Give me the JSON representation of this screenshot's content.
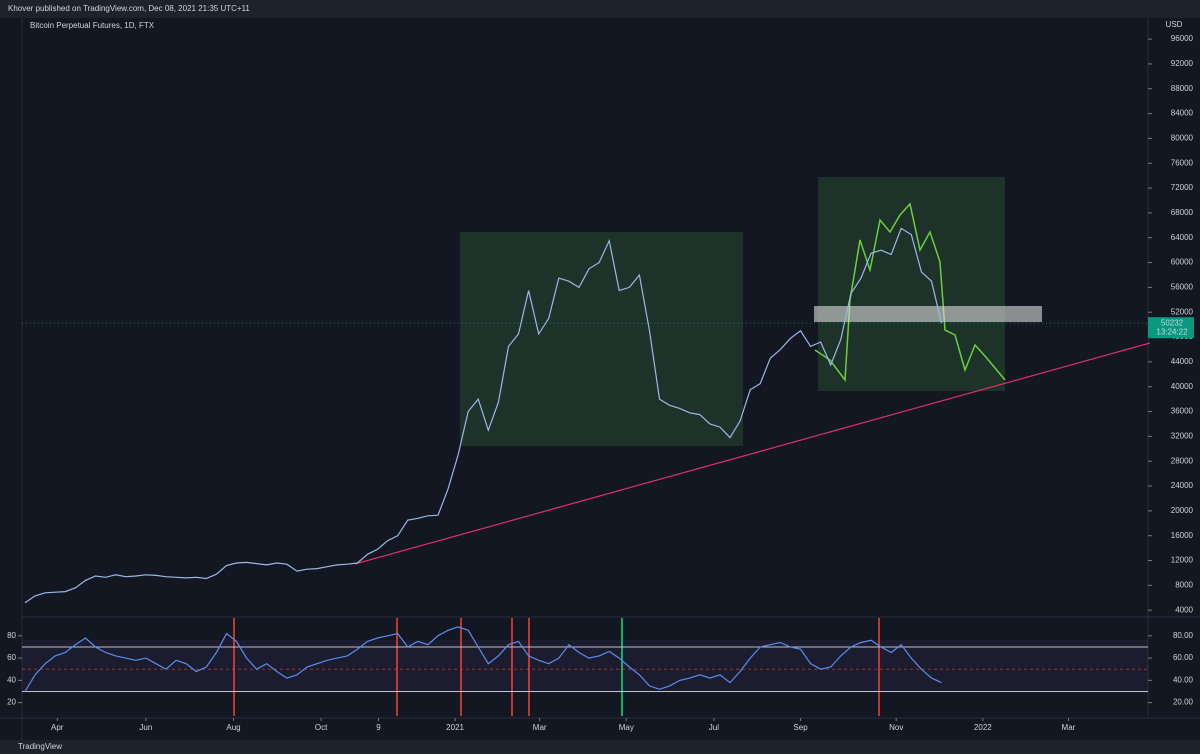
{
  "header": "Khover published on TradingView.com, Dec 08, 2021 21:35 UTC+11",
  "footer": "TradingView",
  "chart_data": [
    {
      "type": "line",
      "title": "Bitcoin Perpetual Futures, 1D, FTX",
      "y_axis_label": "USD",
      "color": "#9bb8e8",
      "grid": false,
      "last_price": 50232,
      "countdown": "13:24:22",
      "x": [
        0,
        1,
        2,
        3,
        4,
        5,
        6,
        7,
        8,
        9,
        10,
        11,
        12,
        13,
        14,
        15,
        16,
        17,
        18,
        19,
        20,
        21,
        22,
        23,
        24,
        25,
        26,
        27,
        28,
        29,
        30,
        31,
        32,
        33,
        34,
        35,
        36,
        37,
        38,
        39,
        40,
        41,
        42,
        43,
        44,
        45,
        46,
        47,
        48,
        49,
        50,
        51,
        52,
        53,
        54,
        55,
        56,
        57,
        58,
        59,
        60,
        61,
        62,
        63,
        64,
        65,
        66,
        67,
        68,
        69,
        70,
        71,
        72,
        73,
        74,
        75,
        76,
        77,
        78,
        79,
        80,
        81,
        82,
        83,
        84,
        85,
        86,
        87,
        88,
        89,
        90,
        91
      ],
      "values": [
        5200,
        6300,
        6800,
        6900,
        7000,
        7600,
        8800,
        9500,
        9300,
        9700,
        9400,
        9500,
        9700,
        9600,
        9400,
        9300,
        9200,
        9300,
        9100,
        9800,
        11200,
        11600,
        11700,
        11500,
        11300,
        11600,
        11400,
        10300,
        10600,
        10700,
        11000,
        11300,
        11400,
        11600,
        13000,
        13800,
        15200,
        16000,
        18500,
        18800,
        19200,
        19300,
        23500,
        29000,
        36000,
        38000,
        33000,
        37500,
        46500,
        48500,
        55500,
        48500,
        51000,
        57500,
        57000,
        56000,
        59000,
        60000,
        63500,
        55500,
        56000,
        58000,
        49000,
        38000,
        37000,
        36500,
        35800,
        35500,
        34000,
        33500,
        31800,
        34500,
        39500,
        40500,
        44600,
        46000,
        47800,
        49000,
        46500,
        47200,
        43500,
        47600,
        55000,
        57500,
        61500,
        62000,
        61300,
        65500,
        64500,
        58500,
        57000,
        50232
      ],
      "xlim": [
        -0.3,
        111.5
      ],
      "xticks": [
        {
          "value": 3.2,
          "label": "Apr"
        },
        {
          "value": 12.0,
          "label": "Jun"
        },
        {
          "value": 20.7,
          "label": "Aug"
        },
        {
          "value": 29.4,
          "label": "Oct"
        },
        {
          "value": 35.1,
          "label": "9"
        },
        {
          "value": 42.7,
          "label": "2021"
        },
        {
          "value": 51.1,
          "label": "Mar"
        },
        {
          "value": 59.7,
          "label": "May"
        },
        {
          "value": 68.4,
          "label": "Jul"
        },
        {
          "value": 77.0,
          "label": "Sep"
        },
        {
          "value": 86.5,
          "label": "Nov"
        },
        {
          "value": 95.1,
          "label": "2022"
        },
        {
          "value": 103.6,
          "label": "Mar"
        }
      ],
      "ylim": [
        2900,
        99400
      ],
      "yticks": [
        4000,
        8000,
        12000,
        16000,
        20000,
        24000,
        28000,
        32000,
        36000,
        40000,
        44000,
        48000,
        52000,
        56000,
        60000,
        64000,
        68000,
        72000,
        76000,
        80000,
        84000,
        88000,
        92000,
        96000
      ]
    },
    {
      "type": "line",
      "color": "#5b8def",
      "x": [
        0,
        1,
        2,
        3,
        4,
        5,
        6,
        7,
        8,
        9,
        10,
        11,
        12,
        13,
        14,
        15,
        16,
        17,
        18,
        19,
        20,
        21,
        22,
        23,
        24,
        25,
        26,
        27,
        28,
        29,
        30,
        31,
        32,
        33,
        34,
        35,
        36,
        37,
        38,
        39,
        40,
        41,
        42,
        43,
        44,
        45,
        46,
        47,
        48,
        49,
        50,
        51,
        52,
        53,
        54,
        55,
        56,
        57,
        58,
        59,
        60,
        61,
        62,
        63,
        64,
        65,
        66,
        67,
        68,
        69,
        70,
        71,
        72,
        73,
        74,
        75,
        76,
        77,
        78,
        79,
        80,
        81,
        82,
        83,
        84,
        85,
        86,
        87,
        88,
        89,
        90,
        91
      ],
      "values": [
        30,
        45,
        55,
        62,
        65,
        72,
        78,
        70,
        65,
        62,
        60,
        58,
        60,
        55,
        50,
        58,
        55,
        48,
        52,
        65,
        82,
        75,
        60,
        50,
        55,
        48,
        42,
        45,
        52,
        55,
        58,
        60,
        62,
        68,
        75,
        78,
        80,
        82,
        70,
        75,
        72,
        80,
        85,
        88,
        85,
        70,
        55,
        62,
        72,
        75,
        62,
        58,
        55,
        60,
        72,
        65,
        60,
        62,
        66,
        60,
        52,
        45,
        35,
        32,
        35,
        40,
        42,
        45,
        42,
        45,
        38,
        48,
        60,
        70,
        72,
        74,
        70,
        68,
        55,
        50,
        52,
        62,
        70,
        74,
        76,
        70,
        65,
        72,
        60,
        50,
        42,
        38
      ],
      "xlim": [
        -0.3,
        111.5
      ],
      "levels": [
        70,
        50,
        30
      ],
      "ylim": [
        8,
        96
      ],
      "yticks": [
        20,
        40,
        60,
        80
      ],
      "y2lim": [
        8,
        96
      ],
      "y2ticks": [
        {
          "value": 80,
          "label": "80.00"
        },
        {
          "value": 60,
          "label": "60.00"
        },
        {
          "value": 40,
          "label": "40.00"
        },
        {
          "value": 20,
          "label": "20.00"
        }
      ]
    }
  ]
}
